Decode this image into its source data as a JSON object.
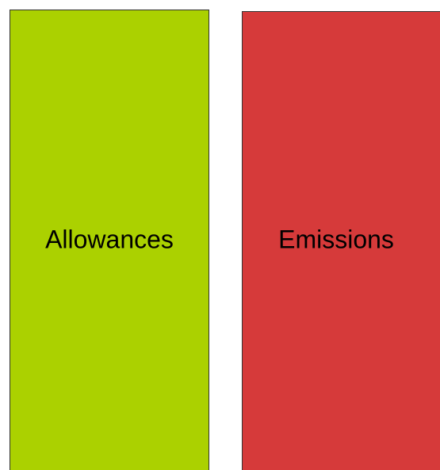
{
  "boxes": [
    {
      "label": "Allowances",
      "color": "#abd100"
    },
    {
      "label": "Emissions",
      "color": "#d63a3a"
    }
  ]
}
